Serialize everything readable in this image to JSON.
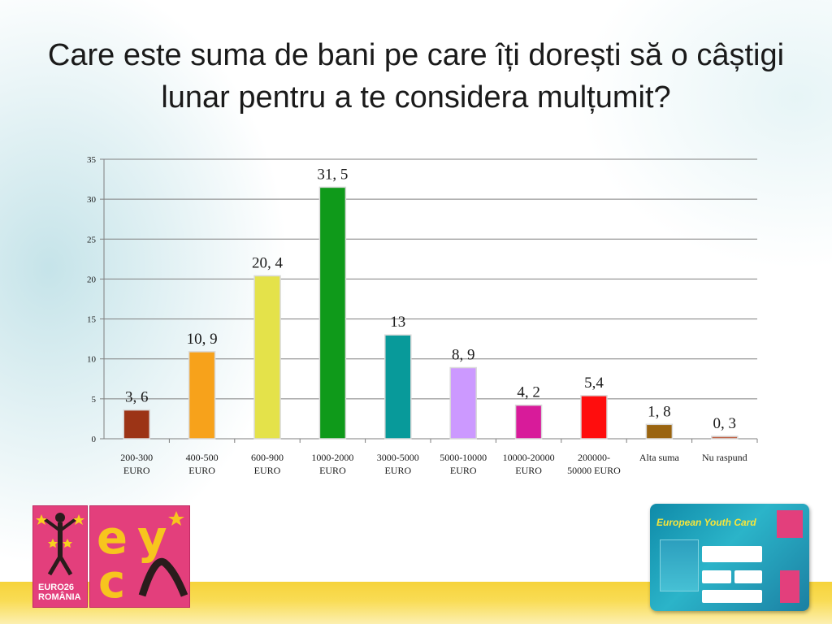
{
  "title": "Care este suma de bani pe care îți dorești să o câștigi lunar pentru a te considera mulțumit?",
  "chart_data": {
    "type": "bar",
    "title": "",
    "xlabel": "",
    "ylabel": "",
    "ylim": [
      0,
      35
    ],
    "yticks": [
      0,
      5,
      10,
      15,
      20,
      25,
      30,
      35
    ],
    "grid": true,
    "legend": "none",
    "categories": [
      [
        "200-300",
        "EURO"
      ],
      [
        "400-500",
        "EURO"
      ],
      [
        "600-900",
        "EURO"
      ],
      [
        "1000-2000",
        "EURO"
      ],
      [
        "3000-5000",
        "EURO"
      ],
      [
        "5000-10000",
        "EURO"
      ],
      [
        "10000-20000",
        "EURO"
      ],
      [
        "200000-",
        "50000 EURO"
      ],
      [
        "Alta suma"
      ],
      [
        "Nu raspund"
      ]
    ],
    "values": [
      3.6,
      10.9,
      20.4,
      31.5,
      13,
      8.9,
      4.2,
      5.4,
      1.8,
      0.3
    ],
    "data_labels": [
      "3, 6",
      "10, 9",
      "20, 4",
      "31, 5",
      "13",
      "8, 9",
      "4, 2",
      "5,4",
      "1, 8",
      "0, 3"
    ],
    "colors": [
      "#9c3416",
      "#f7a21b",
      "#e4e24a",
      "#0f9a1a",
      "#089a9a",
      "#cc99ff",
      "#d81b9a",
      "#ff0d0d",
      "#9a6410",
      "#c0654a"
    ]
  },
  "logos": {
    "euro26_text": "EURO26\nROMÂNIA",
    "card_title": "European Youth Card"
  },
  "palette": {
    "axis": "#7f7f7f",
    "grid": "#7f7f7f",
    "logo_pink": "#e33f7c",
    "logo_yellow": "#f7c51e",
    "card_teal": "#1b9ab6",
    "strip_yellow": "#f6d33a"
  }
}
